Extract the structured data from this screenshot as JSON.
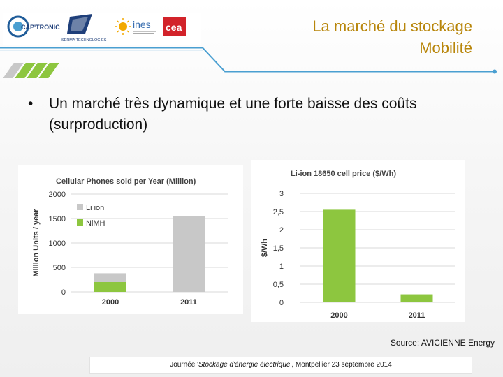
{
  "header": {
    "logos": {
      "captronic": "CAP'TRONIC",
      "serma": "SERMA TECHNOLOGIES",
      "ines": "ines",
      "cea": "cea"
    },
    "title_line1": "La marché du stockage",
    "title_line2": "Mobilité"
  },
  "colors": {
    "accent_blue": "#4a9fd1",
    "stripe_green": "#8dc63f",
    "stripe_gray": "#c8c8c8",
    "liion_gray": "#c8c8c8",
    "nimh_green": "#8dc63f",
    "title_color": "#b8860b"
  },
  "bullet": {
    "marker": "•",
    "text": "Un marché très dynamique et une forte baisse des coûts (surproduction)"
  },
  "chart_data": [
    {
      "type": "bar",
      "title": "Cellular Phones sold per Year (Million)",
      "ylabel": "Million Units / year",
      "categories": [
        "2000",
        "2011"
      ],
      "yticks": [
        "0",
        "500",
        "1000",
        "1500",
        "2000"
      ],
      "ylim": [
        0,
        2000
      ],
      "stacked": true,
      "series": [
        {
          "name": "NiMH",
          "values": [
            200,
            0
          ]
        },
        {
          "name": "Li ion",
          "values": [
            180,
            1550
          ]
        }
      ],
      "legend_position": "top-left",
      "grid": true
    },
    {
      "type": "bar",
      "title": "Li-ion 18650 cell price ($/Wh)",
      "ylabel": "$/Wh",
      "categories": [
        "2000",
        "2011"
      ],
      "yticks": [
        "0",
        "0,5",
        "1",
        "1,5",
        "2",
        "2,5",
        "3"
      ],
      "ylim": [
        0,
        3
      ],
      "series": [
        {
          "values": [
            2.55,
            0.22
          ]
        }
      ],
      "grid": true
    }
  ],
  "source": "Source: AVICIENNE Energy",
  "footer": {
    "text_prefix": "Journée '",
    "text_italic": "Stockage d'énergie électrique",
    "text_suffix": "', Montpellier  23 septembre  2014"
  }
}
